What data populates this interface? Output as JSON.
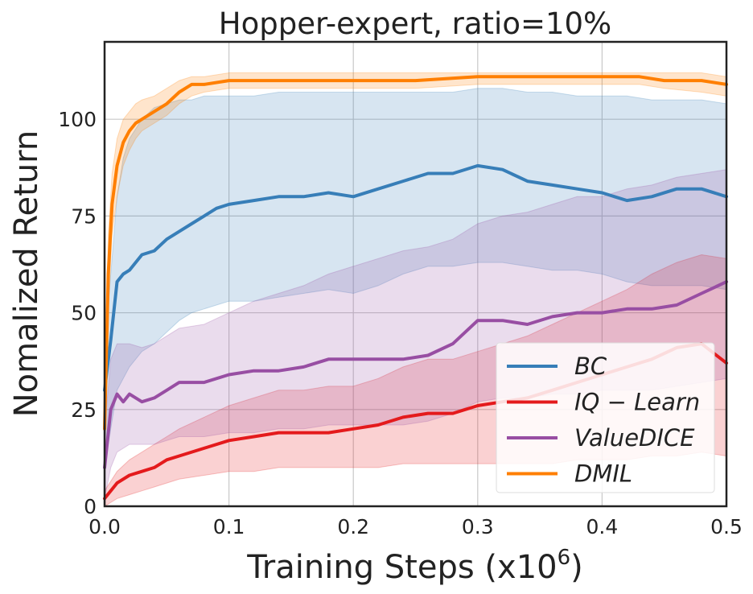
{
  "chart_data": {
    "type": "line",
    "title": "Hopper-expert, ratio=10%",
    "xlabel": "Training Steps (x10",
    "xlabel_exponent": "6",
    "xlabel_suffix": ")",
    "ylabel": "Nomalized Return",
    "xlim": [
      0.0,
      0.5
    ],
    "ylim": [
      0,
      120
    ],
    "xticks": [
      0.0,
      0.1,
      0.2,
      0.3,
      0.4,
      0.5
    ],
    "xtick_labels": [
      "0.0",
      "0.1",
      "0.2",
      "0.3",
      "0.4",
      "0.5"
    ],
    "yticks": [
      0,
      25,
      50,
      75,
      100
    ],
    "ytick_labels": [
      "0",
      "25",
      "50",
      "75",
      "100"
    ],
    "grid": true,
    "legend_position": "bottom-right",
    "series": [
      {
        "name": "BC",
        "label": "BC",
        "color": "#377eb8",
        "x": [
          0.0,
          0.005,
          0.01,
          0.015,
          0.02,
          0.03,
          0.04,
          0.05,
          0.06,
          0.07,
          0.08,
          0.09,
          0.1,
          0.12,
          0.14,
          0.16,
          0.18,
          0.2,
          0.22,
          0.24,
          0.26,
          0.28,
          0.3,
          0.32,
          0.34,
          0.36,
          0.38,
          0.4,
          0.42,
          0.44,
          0.46,
          0.48,
          0.5
        ],
        "y": [
          30,
          43,
          58,
          60,
          61,
          65,
          66,
          69,
          71,
          73,
          75,
          77,
          78,
          79,
          80,
          80,
          81,
          80,
          82,
          84,
          86,
          86,
          88,
          87,
          84,
          83,
          82,
          81,
          79,
          80,
          82,
          82,
          80
        ],
        "lower": [
          10,
          20,
          30,
          33,
          36,
          40,
          42,
          45,
          48,
          50,
          51,
          52,
          53,
          53,
          54,
          55,
          56,
          55,
          57,
          60,
          62,
          62,
          63,
          63,
          62,
          61,
          61,
          60,
          58,
          57,
          57,
          57,
          56
        ],
        "upper": [
          40,
          60,
          80,
          90,
          95,
          100,
          103,
          104,
          105,
          105,
          106,
          106,
          106,
          106,
          107,
          107,
          107,
          107,
          107,
          107,
          107,
          107,
          108,
          108,
          107,
          107,
          106,
          106,
          106,
          105,
          105,
          105,
          104
        ]
      },
      {
        "name": "IQ-Learn",
        "label": "IQ − Learn",
        "color": "#e41a1c",
        "x": [
          0.0,
          0.01,
          0.02,
          0.03,
          0.04,
          0.05,
          0.06,
          0.08,
          0.1,
          0.12,
          0.14,
          0.16,
          0.18,
          0.2,
          0.22,
          0.24,
          0.26,
          0.28,
          0.3,
          0.32,
          0.34,
          0.36,
          0.38,
          0.4,
          0.42,
          0.44,
          0.46,
          0.48,
          0.5
        ],
        "y": [
          2,
          6,
          8,
          9,
          10,
          12,
          13,
          15,
          17,
          18,
          19,
          19,
          19,
          20,
          21,
          23,
          24,
          24,
          26,
          27,
          28,
          30,
          32,
          34,
          36,
          38,
          41,
          42,
          37
        ],
        "lower": [
          0,
          2,
          3,
          4,
          5,
          6,
          7,
          8,
          9,
          9,
          10,
          10,
          10,
          10,
          10,
          11,
          11,
          11,
          11,
          11,
          11,
          11,
          12,
          12,
          12,
          13,
          13,
          14,
          13
        ],
        "upper": [
          4,
          9,
          12,
          14,
          16,
          18,
          20,
          23,
          26,
          28,
          30,
          30,
          31,
          31,
          33,
          36,
          38,
          38,
          40,
          42,
          44,
          47,
          50,
          53,
          56,
          60,
          63,
          65,
          64
        ]
      },
      {
        "name": "ValueDICE",
        "label": "ValueDICE",
        "color": "#984ea3",
        "x": [
          0.0,
          0.005,
          0.01,
          0.015,
          0.02,
          0.03,
          0.04,
          0.05,
          0.06,
          0.08,
          0.1,
          0.12,
          0.14,
          0.16,
          0.18,
          0.2,
          0.22,
          0.24,
          0.26,
          0.28,
          0.3,
          0.32,
          0.34,
          0.36,
          0.38,
          0.4,
          0.42,
          0.44,
          0.46,
          0.48,
          0.5
        ],
        "y": [
          10,
          25,
          29,
          27,
          29,
          27,
          28,
          30,
          32,
          32,
          34,
          35,
          35,
          36,
          38,
          38,
          38,
          38,
          39,
          42,
          48,
          48,
          47,
          49,
          50,
          50,
          51,
          51,
          52,
          55,
          58
        ],
        "lower": [
          2,
          10,
          14,
          15,
          16,
          16,
          16,
          17,
          18,
          18,
          19,
          19,
          20,
          20,
          21,
          21,
          21,
          21,
          22,
          24,
          27,
          28,
          28,
          29,
          29,
          30,
          30,
          30,
          31,
          32,
          33
        ],
        "upper": [
          20,
          38,
          42,
          42,
          42,
          41,
          42,
          44,
          46,
          47,
          50,
          53,
          55,
          57,
          60,
          62,
          64,
          66,
          67,
          69,
          73,
          75,
          76,
          78,
          80,
          80,
          82,
          83,
          85,
          86,
          87
        ]
      },
      {
        "name": "DMIL",
        "label": "DMIL",
        "color": "#ff7f00",
        "x": [
          0.0,
          0.003,
          0.006,
          0.01,
          0.015,
          0.02,
          0.025,
          0.03,
          0.04,
          0.05,
          0.06,
          0.07,
          0.08,
          0.1,
          0.15,
          0.2,
          0.25,
          0.3,
          0.35,
          0.4,
          0.43,
          0.45,
          0.48,
          0.5
        ],
        "y": [
          20,
          60,
          78,
          88,
          94,
          97,
          99,
          100,
          102,
          104,
          107,
          109,
          109,
          110,
          110,
          110,
          110,
          111,
          111,
          111,
          111,
          110,
          110,
          109
        ],
        "lower": [
          10,
          50,
          70,
          80,
          88,
          92,
          95,
          97,
          99,
          101,
          104,
          106,
          107,
          108,
          108,
          108,
          108,
          109,
          109,
          109,
          109,
          108,
          107,
          106
        ],
        "upper": [
          30,
          70,
          86,
          95,
          100,
          102,
          104,
          105,
          106,
          108,
          110,
          111,
          111,
          112,
          112,
          112,
          112,
          112,
          112,
          112,
          112,
          112,
          112,
          111
        ]
      }
    ]
  }
}
